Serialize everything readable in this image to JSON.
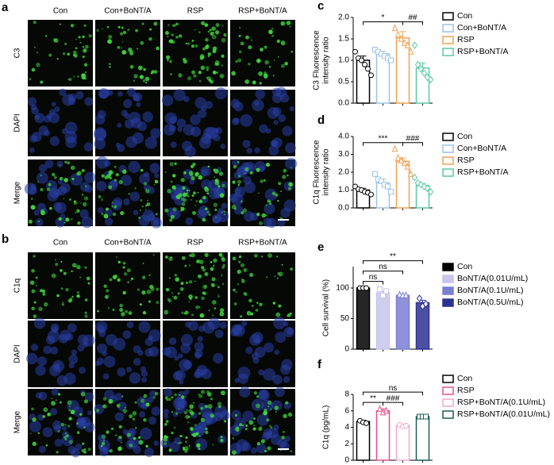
{
  "image_panels": [
    {
      "label": "a",
      "columns": [
        "Con",
        "Con+BoNT/A",
        "RSP",
        "RSP+BoNT/A"
      ],
      "rows": [
        "C3",
        "DAPI",
        "Merge"
      ]
    },
    {
      "label": "b",
      "columns": [
        "Con",
        "Con+BoNT/A",
        "RSP",
        "RSP+BoNT/A"
      ],
      "rows": [
        "C1q",
        "DAPI",
        "Merge"
      ]
    }
  ],
  "chart_data": [
    {
      "type": "bar",
      "panel_label": "c",
      "y_label": [
        "C3 Fluorescence",
        "intensity ratio"
      ],
      "categories": [
        "Con",
        "Con+BoNT/A",
        "RSP",
        "RSP+BoNT/A"
      ],
      "colors": [
        "#000000",
        "#9dc3e6",
        "#f4a154",
        "#5cc8a0"
      ],
      "filled": false,
      "markers": [
        "circle",
        "square",
        "triangle",
        "diamond"
      ],
      "values": [
        1.0,
        1.15,
        1.52,
        0.82
      ],
      "errors": [
        0.1,
        0.06,
        0.15,
        0.12
      ],
      "points": [
        [
          1.2,
          1.05,
          1.0,
          0.9,
          0.8,
          0.65
        ],
        [
          1.25,
          1.2,
          1.15,
          1.1,
          1.05,
          1.0
        ],
        [
          1.75,
          1.6,
          1.5,
          1.4,
          1.35,
          1.2
        ],
        [
          1.35,
          0.9,
          0.8,
          0.7,
          0.6,
          0.55
        ]
      ],
      "ylim": [
        0,
        2
      ],
      "yticks": [
        {
          "value": 0,
          "label": "0.0"
        },
        0.5,
        {
          "value": 1,
          "label": "1.0"
        },
        1.5,
        {
          "value": 2,
          "label": "2.0"
        }
      ],
      "annotations": [
        {
          "from": 0,
          "to": 2,
          "text": "*"
        },
        {
          "from": 2,
          "to": 3,
          "text": "##"
        }
      ]
    },
    {
      "type": "bar",
      "panel_label": "d",
      "y_label": [
        "C1q Fluorescence",
        "intensity ratio"
      ],
      "categories": [
        "Con",
        "Con+BoNT/A",
        "RSP",
        "RSP+BoNT/A"
      ],
      "colors": [
        "#000000",
        "#9dc3e6",
        "#f4a154",
        "#5cc8a0"
      ],
      "filled": false,
      "markers": [
        "circle",
        "square",
        "triangle",
        "diamond"
      ],
      "values": [
        1.0,
        1.4,
        2.6,
        1.25
      ],
      "errors": [
        0.1,
        0.2,
        0.2,
        0.1
      ],
      "points": [
        [
          1.2,
          1.05,
          1.0,
          0.9,
          0.85,
          0.75
        ],
        [
          1.9,
          1.6,
          1.5,
          1.3,
          1.2,
          0.9
        ],
        [
          3.3,
          2.8,
          2.65,
          2.5,
          2.3,
          1.9
        ],
        [
          1.7,
          1.4,
          1.3,
          1.2,
          1.1,
          0.9
        ]
      ],
      "ylim": [
        0,
        4
      ],
      "yticks": [
        {
          "value": 0,
          "label": "0.0"
        },
        {
          "value": 1,
          "label": "1.0"
        },
        {
          "value": 2,
          "label": "2.0"
        },
        {
          "value": 3,
          "label": "3.0"
        },
        {
          "value": 4,
          "label": "4.0"
        }
      ],
      "annotations": [
        {
          "from": 0,
          "to": 2,
          "text": "***"
        },
        {
          "from": 2,
          "to": 3,
          "text": "###"
        }
      ]
    },
    {
      "type": "bar",
      "panel_label": "e",
      "y_label": [
        "Cell survival (%)"
      ],
      "categories": [
        "Con",
        "BoNT/A(0.01U/mL)",
        "BoNT/A(0.1U/mL)",
        "BoNT/A(0.5U/mL)"
      ],
      "colors": [
        "#000000",
        "#c9c6ea",
        "#7b7fd4",
        "#2e3192"
      ],
      "filled": true,
      "markers": [
        "circle",
        "square",
        "triangle",
        "diamond"
      ],
      "values": [
        100,
        92,
        88,
        76
      ],
      "errors": [
        0.5,
        3,
        1,
        4
      ],
      "points": [
        [
          100,
          100,
          100
        ],
        [
          98,
          88,
          95
        ],
        [
          89,
          88,
          88
        ],
        [
          83,
          70,
          74
        ]
      ],
      "ylim": [
        0,
        135
      ],
      "yticks": [
        0,
        50,
        100
      ],
      "annotations": [
        {
          "from": 0,
          "to": 1,
          "text": "ns"
        },
        {
          "from": 0,
          "to": 2,
          "text": "ns"
        },
        {
          "from": 0,
          "to": 3,
          "text": "**"
        }
      ]
    },
    {
      "type": "bar",
      "panel_label": "f",
      "y_label": [
        "C1q (pg/mL)"
      ],
      "categories": [
        "Con",
        "RSP",
        "RSP+BoNT/A(0.1U/mL)",
        "RSP+BoNT/A(0.01U/mL)"
      ],
      "colors": [
        "#000000",
        "#e8508a",
        "#f0a8c8",
        "#1d5c5a"
      ],
      "filled": false,
      "markers": [
        "circle",
        "triangle",
        "circle",
        "square"
      ],
      "values": [
        4.7,
        6.0,
        4.2,
        5.3
      ],
      "errors": [
        0.15,
        0.25,
        0.1,
        0.03
      ],
      "points": [
        [
          4.8,
          4.6,
          4.5
        ],
        [
          6.2,
          5.8,
          6.0
        ],
        [
          4.3,
          4.1,
          4.2
        ],
        [
          5.3,
          5.3,
          5.3
        ]
      ],
      "ylim": [
        0,
        8
      ],
      "yticks": [
        0,
        2,
        4,
        6,
        8
      ],
      "annotations": [
        {
          "from": 0,
          "to": 1,
          "text": "**"
        },
        {
          "from": 1,
          "to": 2,
          "text": "###"
        },
        {
          "from": 0,
          "to": 3,
          "text": "ns"
        }
      ]
    }
  ]
}
